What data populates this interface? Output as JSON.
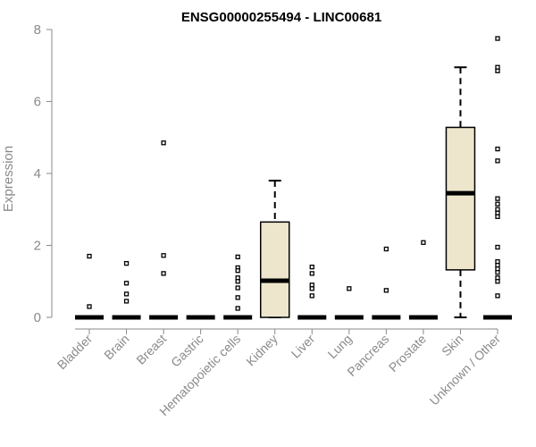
{
  "chart_data": {
    "type": "box",
    "title": "ENSG00000255494 - LINC00681",
    "ylabel": "Expression",
    "ylim": [
      0,
      8
    ],
    "yticks": [
      "0",
      "2",
      "4",
      "6",
      "8"
    ],
    "box_fill": "#ede6cd",
    "line_color": "#000000",
    "categories": [
      "Bladder",
      "Brain",
      "Breast",
      "Gastric",
      "Hematopoietic cells",
      "Kidney",
      "Liver",
      "Lung",
      "Pancreas",
      "Prostate",
      "Skin",
      "Unknown / Other"
    ],
    "boxes": [
      {
        "min": 0,
        "q1": 0,
        "median": 0,
        "q3": 0,
        "max": 0,
        "outliers": [
          1.7,
          0.3
        ]
      },
      {
        "min": 0,
        "q1": 0,
        "median": 0,
        "q3": 0,
        "max": 0,
        "outliers": [
          1.5,
          0.95,
          0.65,
          0.45
        ]
      },
      {
        "min": 0,
        "q1": 0,
        "median": 0,
        "q3": 0,
        "max": 0,
        "outliers": [
          4.85,
          1.72,
          1.22
        ]
      },
      {
        "min": 0,
        "q1": 0,
        "median": 0,
        "q3": 0,
        "max": 0,
        "outliers": []
      },
      {
        "min": 0,
        "q1": 0,
        "median": 0,
        "q3": 0,
        "max": 0,
        "outliers": [
          1.68,
          1.38,
          1.3,
          1.1,
          1.0,
          0.82,
          0.55,
          0.25
        ]
      },
      {
        "min": 0,
        "q1": 0,
        "median": 1.02,
        "q3": 2.65,
        "max": 3.8,
        "outliers": []
      },
      {
        "min": 0,
        "q1": 0,
        "median": 0,
        "q3": 0,
        "max": 0,
        "outliers": [
          1.4,
          1.22,
          0.9,
          0.8,
          0.6
        ]
      },
      {
        "min": 0,
        "q1": 0,
        "median": 0,
        "q3": 0,
        "max": 0,
        "outliers": [
          0.8
        ]
      },
      {
        "min": 0,
        "q1": 0,
        "median": 0,
        "q3": 0,
        "max": 0,
        "outliers": [
          1.9,
          0.75
        ]
      },
      {
        "min": 0,
        "q1": 0,
        "median": 0,
        "q3": 0,
        "max": 0,
        "outliers": [
          2.08
        ]
      },
      {
        "min": 0,
        "q1": 1.32,
        "median": 3.45,
        "q3": 5.28,
        "max": 6.95,
        "outliers": []
      },
      {
        "min": 0,
        "q1": 0,
        "median": 0,
        "q3": 0,
        "max": 0,
        "outliers": [
          7.75,
          6.95,
          6.85,
          4.68,
          4.35,
          3.3,
          3.15,
          3.0,
          2.9,
          2.8,
          1.95,
          1.55,
          1.45,
          1.35,
          1.25,
          1.1,
          1.0,
          0.6
        ]
      }
    ]
  }
}
